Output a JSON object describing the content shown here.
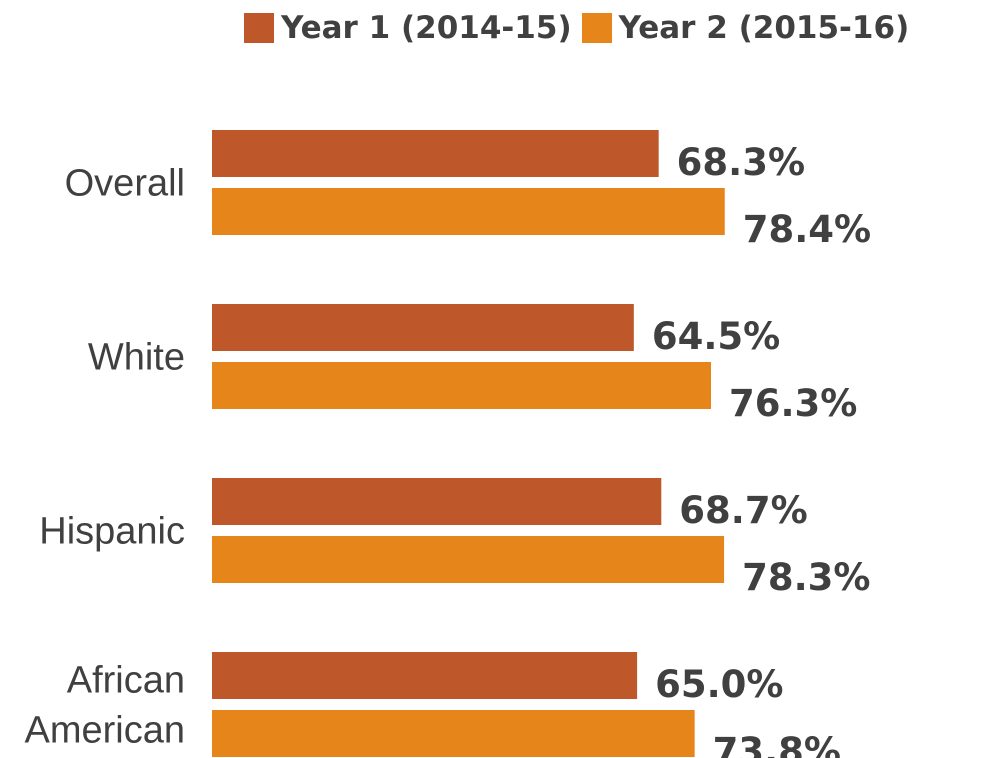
{
  "chart_data": {
    "type": "bar",
    "orientation": "horizontal",
    "categories": [
      "Overall",
      "White",
      "Hispanic",
      "African American"
    ],
    "series": [
      {
        "name": "Year 1 (2014-15)",
        "color": "#BE582A",
        "values": [
          68.3,
          64.5,
          68.7,
          65.0
        ],
        "labels": [
          "68.3%",
          "64.5%",
          "68.7%",
          "65.0%"
        ]
      },
      {
        "name": "Year 2 (2015-16)",
        "color": "#E5851A",
        "values": [
          78.4,
          76.3,
          78.3,
          73.8
        ],
        "labels": [
          "78.4%",
          "76.3%",
          "78.3%",
          "73.8%"
        ]
      }
    ],
    "legend_position": "top-right",
    "grid": false,
    "xlim": [
      0,
      100
    ],
    "category_label_lines": [
      [
        "Overall"
      ],
      [
        "White"
      ],
      [
        "Hispanic"
      ],
      [
        "African",
        "American"
      ]
    ]
  }
}
